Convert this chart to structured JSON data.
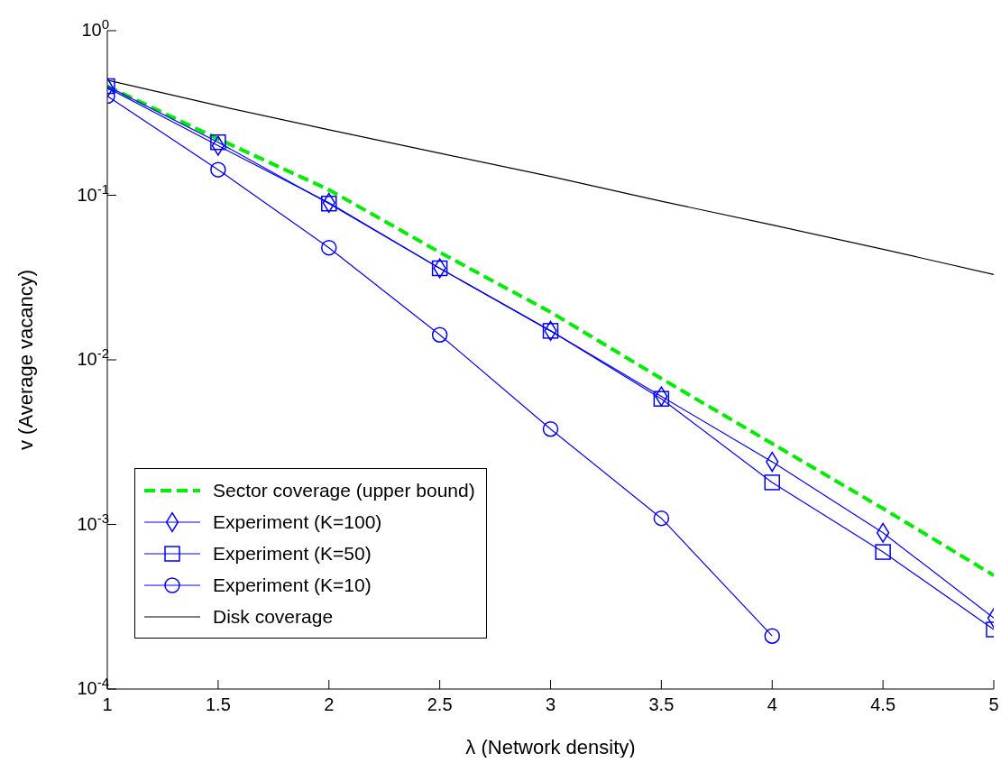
{
  "chart_data": {
    "type": "line",
    "xlabel": "λ (Network density)",
    "ylabel": "v (Average vacancy)",
    "x": [
      1,
      1.5,
      2,
      2.5,
      3,
      3.5,
      4,
      4.5,
      5
    ],
    "xlim": [
      1,
      5
    ],
    "xticks": [
      1,
      1.5,
      2,
      2.5,
      3,
      3.5,
      4,
      4.5,
      5
    ],
    "ylim": [
      0.0001,
      1
    ],
    "log": true,
    "yticks": [
      {
        "value": 0.0001,
        "label": "10$^{-4}$"
      },
      {
        "value": 0.001,
        "label": "10$^{-3}$"
      },
      {
        "value": 0.01,
        "label": "10$^{-2}$"
      },
      {
        "value": 0.1,
        "label": "10$^{-1}$"
      },
      {
        "value": 1,
        "label": "10$^{0}$"
      }
    ],
    "grid": false,
    "legend": "bottom left",
    "series": [
      {
        "name": "Sector coverage (upper bound)",
        "color": "#00ee00",
        "line_style": "dashed",
        "marker": "none",
        "values": [
          0.46,
          0.22,
          0.108,
          0.045,
          0.0195,
          0.0077,
          0.0031,
          0.00125,
          0.00049
        ]
      },
      {
        "name": "Experiment (K=100)",
        "color": "#0000ff",
        "line_style": "solid",
        "marker": "diamond",
        "values": [
          0.45,
          0.2,
          0.09,
          0.036,
          0.015,
          0.006,
          0.0024,
          0.00089,
          0.00027
        ]
      },
      {
        "name": "Experiment (K=50)",
        "color": "#0000ff",
        "line_style": "solid",
        "marker": "square",
        "values": [
          0.46,
          0.21,
          0.089,
          0.036,
          0.015,
          0.0058,
          0.0018,
          0.00068,
          0.00023
        ]
      },
      {
        "name": "Experiment (K=10)",
        "color": "#0000ff",
        "line_style": "solid",
        "marker": "circle",
        "values": [
          0.4,
          0.143,
          0.048,
          0.0142,
          0.0038,
          0.00109,
          0.00021,
          null,
          null
        ]
      },
      {
        "name": "Disk coverage",
        "color": "#000000",
        "line_style": "solid",
        "marker": "none",
        "values": [
          0.5,
          0.35,
          0.25,
          0.18,
          0.13,
          0.092,
          0.066,
          0.047,
          0.033
        ]
      }
    ]
  }
}
